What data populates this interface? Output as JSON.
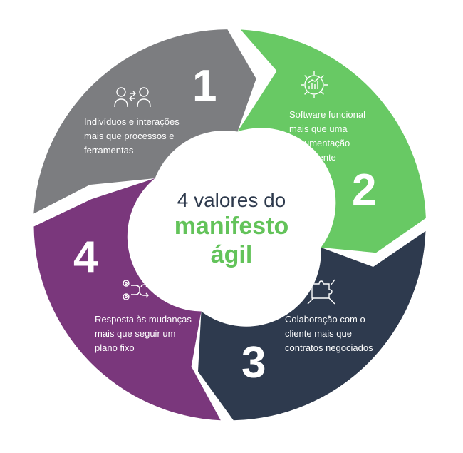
{
  "center": {
    "line1": "4 valores do",
    "line2": "manifesto",
    "line3": "ágil"
  },
  "segments": [
    {
      "number": "1",
      "color": "#7c7d80",
      "icon": "people-exchange-icon",
      "lines": [
        "Indivíduos e interações",
        "mais que processos e",
        "ferramentas"
      ]
    },
    {
      "number": "2",
      "color": "#68c964",
      "icon": "gear-chart-icon",
      "lines": [
        "Software funcional",
        "mais que uma",
        "documentação",
        "abrangente"
      ]
    },
    {
      "number": "3",
      "color": "#2e3a4e",
      "icon": "puzzle-hands-icon",
      "lines": [
        "Colaboração com o",
        "cliente mais que",
        "contratos negociados"
      ]
    },
    {
      "number": "4",
      "color": "#7a377c",
      "icon": "gears-arrows-icon",
      "lines": [
        "Resposta às mudanças",
        "mais que seguir um",
        "plano fixo"
      ]
    }
  ],
  "colors": {
    "center_dark": "#2e3a4d",
    "center_green": "#63c35a",
    "text_white": "#ffffff"
  }
}
